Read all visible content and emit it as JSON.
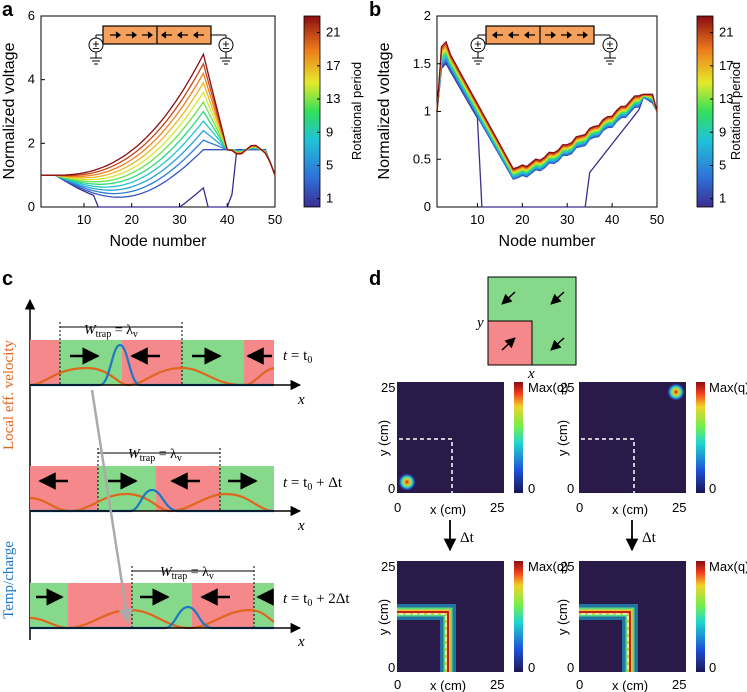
{
  "panels": {
    "a": {
      "label": "a"
    },
    "b": {
      "label": "b"
    },
    "c": {
      "label": "c"
    },
    "d": {
      "label": "d"
    }
  },
  "chart_data": [
    {
      "id": "a",
      "type": "line",
      "xlabel": "Node number",
      "ylabel": "Normalized voltage",
      "xlim": [
        1,
        50
      ],
      "ylim": [
        0,
        6
      ],
      "xticks": [
        "10",
        "20",
        "30",
        "40",
        "50"
      ],
      "yticks": [
        "0",
        "2",
        "4",
        "6"
      ],
      "colorbar": {
        "label": "Rotational period",
        "ticks": [
          "1",
          "5",
          "9",
          "13",
          "17",
          "21"
        ],
        "range": [
          0,
          23
        ]
      },
      "inset": "wire with sources at both ends; arrows pointing toward center from both sides",
      "series_params": {
        "count": 12,
        "peak_node": 35,
        "peak_min": 1.5,
        "peak_max": 4.8,
        "left_level": 1.0,
        "right_level": 1.8,
        "end_value": 1.0
      }
    },
    {
      "id": "b",
      "type": "line",
      "xlabel": "Node number",
      "ylabel": "Normalized voltage",
      "xlim": [
        1,
        50
      ],
      "ylim": [
        0,
        2
      ],
      "xticks": [
        "10",
        "20",
        "30",
        "40",
        "50"
      ],
      "yticks": [
        "0",
        "0.5",
        "1",
        "1.5",
        "2"
      ],
      "colorbar": {
        "label": "Rotational period",
        "ticks": [
          "1",
          "5",
          "9",
          "13",
          "17",
          "21"
        ],
        "range": [
          0,
          23
        ]
      },
      "inset": "wire with sources at both ends; arrows pointing outward from the center",
      "series_params": {
        "count": 12,
        "start_peak": 1.68,
        "min_node": 18,
        "min_low": 0.28,
        "min_high": 0.4,
        "right_peak": 1.18
      }
    }
  ],
  "panel_c": {
    "ylabel_local": "Local eff. velocity",
    "ylabel_temp": "Temp/charge",
    "rows": [
      {
        "w_base": "W",
        "w_sub": "trap",
        "w_eq": " = λ",
        "w_eqsub": "v",
        "time_t": "t",
        "time_eq": " = t",
        "time_sub": "0",
        "time_tail": "",
        "xaxis": "x"
      },
      {
        "w_base": "W",
        "w_sub": "trap",
        "w_eq": " = λ",
        "w_eqsub": "v",
        "time_t": "t",
        "time_eq": " = t",
        "time_sub": "0",
        "time_tail": " + Δt",
        "xaxis": "x"
      },
      {
        "w_base": "W",
        "w_sub": "trap",
        "w_eq": " = λ",
        "w_eqsub": "v",
        "time_t": "t",
        "time_eq": " = t",
        "time_sub": "0",
        "time_tail": " + 2Δt",
        "xaxis": "x"
      }
    ],
    "colors": {
      "red": "#f4888a",
      "green": "#86d98a",
      "orange": "#e0661e",
      "blue": "#1f77c4",
      "gray": "#aaaaaa"
    }
  },
  "panel_d": {
    "schematic_x": "x",
    "schematic_y": "y",
    "heatmaps": [
      {
        "id": "d-tl",
        "xlabel": "x (cm)",
        "ylabel": "y (cm)",
        "xticks": [
          "0",
          "25"
        ],
        "yticks": [
          "0",
          "25"
        ],
        "cbar_max": "Max(q)",
        "cbar_min": "0",
        "hotspot": "bottom-left"
      },
      {
        "id": "d-tr",
        "xlabel": "x (cm)",
        "ylabel": "y (cm)",
        "xticks": [
          "0",
          "25"
        ],
        "yticks": [
          "0",
          "25"
        ],
        "cbar_max": "Max(q)",
        "cbar_min": "0",
        "hotspot": "top-right"
      },
      {
        "id": "d-bl",
        "xlabel": "x (cm)",
        "ylabel": "y (cm)",
        "xticks": [
          "0",
          "25"
        ],
        "yticks": [
          "0",
          "25"
        ],
        "cbar_max": "Max(q)",
        "cbar_min": "0",
        "hotspot": "L-corner"
      },
      {
        "id": "d-br",
        "xlabel": "x (cm)",
        "ylabel": "y (cm)",
        "xticks": [
          "0",
          "25"
        ],
        "yticks": [
          "0",
          "25"
        ],
        "cbar_max": "Max(q)",
        "cbar_min": "0",
        "hotspot": "L-corner"
      }
    ],
    "delta_label": "Δt"
  }
}
